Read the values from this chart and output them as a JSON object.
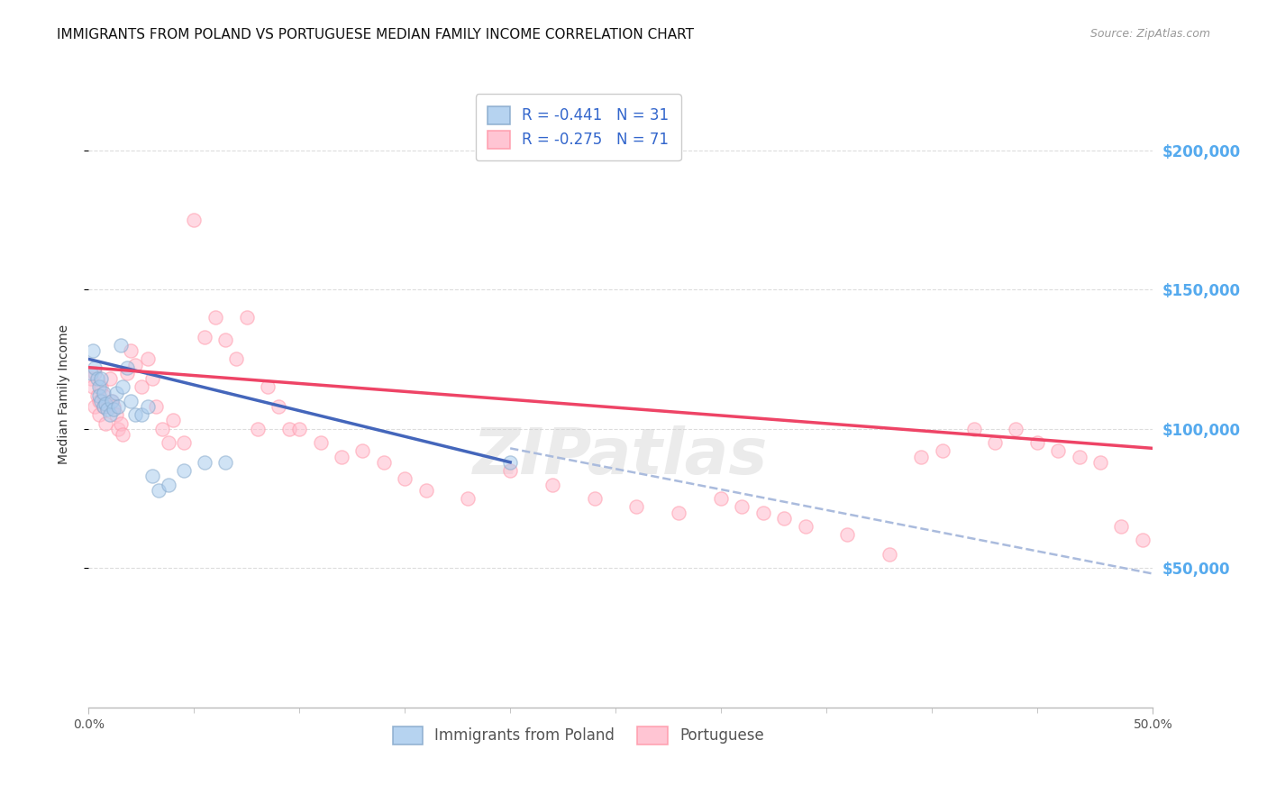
{
  "title": "IMMIGRANTS FROM POLAND VS PORTUGUESE MEDIAN FAMILY INCOME CORRELATION CHART",
  "source": "Source: ZipAtlas.com",
  "ylabel": "Median Family Income",
  "ytick_labels": [
    "$50,000",
    "$100,000",
    "$150,000",
    "$200,000"
  ],
  "ytick_values": [
    50000,
    100000,
    150000,
    200000
  ],
  "ylim": [
    0,
    225000
  ],
  "xlim": [
    0.0,
    0.505
  ],
  "xticks": [
    0.0,
    0.505
  ],
  "xtick_labels": [
    "0.0%",
    "50.0%"
  ],
  "legend_entry1": "R = -0.441   N = 31",
  "legend_entry2": "R = -0.275   N = 71",
  "color_blue_fill": "#AACCEE",
  "color_pink_fill": "#FFBBCC",
  "color_blue_edge": "#88AACC",
  "color_pink_edge": "#FF99AA",
  "color_blue_line": "#4466BB",
  "color_pink_line": "#EE4466",
  "color_dashed": "#AABBDD",
  "poland_x": [
    0.001,
    0.002,
    0.003,
    0.004,
    0.005,
    0.005,
    0.006,
    0.006,
    0.007,
    0.007,
    0.008,
    0.009,
    0.01,
    0.011,
    0.012,
    0.013,
    0.014,
    0.015,
    0.016,
    0.018,
    0.02,
    0.022,
    0.025,
    0.028,
    0.03,
    0.033,
    0.038,
    0.045,
    0.055,
    0.065,
    0.2
  ],
  "poland_y": [
    120000,
    128000,
    122000,
    118000,
    115000,
    112000,
    110000,
    118000,
    108000,
    113000,
    109000,
    107000,
    105000,
    110000,
    107000,
    113000,
    108000,
    130000,
    115000,
    122000,
    110000,
    105000,
    105000,
    108000,
    83000,
    78000,
    80000,
    85000,
    88000,
    88000,
    88000
  ],
  "portuguese_x": [
    0.001,
    0.002,
    0.003,
    0.003,
    0.004,
    0.005,
    0.005,
    0.006,
    0.007,
    0.007,
    0.008,
    0.009,
    0.01,
    0.011,
    0.012,
    0.013,
    0.014,
    0.015,
    0.016,
    0.018,
    0.02,
    0.022,
    0.025,
    0.028,
    0.03,
    0.032,
    0.035,
    0.038,
    0.04,
    0.045,
    0.05,
    0.055,
    0.06,
    0.065,
    0.07,
    0.075,
    0.08,
    0.085,
    0.09,
    0.095,
    0.1,
    0.11,
    0.12,
    0.13,
    0.14,
    0.15,
    0.16,
    0.18,
    0.2,
    0.22,
    0.24,
    0.26,
    0.28,
    0.3,
    0.31,
    0.32,
    0.33,
    0.34,
    0.36,
    0.38,
    0.395,
    0.405,
    0.42,
    0.43,
    0.44,
    0.45,
    0.46,
    0.47,
    0.48,
    0.49,
    0.5
  ],
  "portuguese_y": [
    118000,
    115000,
    120000,
    108000,
    112000,
    110000,
    105000,
    115000,
    108000,
    112000,
    102000,
    108000,
    118000,
    110000,
    108000,
    105000,
    100000,
    102000,
    98000,
    120000,
    128000,
    123000,
    115000,
    125000,
    118000,
    108000,
    100000,
    95000,
    103000,
    95000,
    175000,
    133000,
    140000,
    132000,
    125000,
    140000,
    100000,
    115000,
    108000,
    100000,
    100000,
    95000,
    90000,
    92000,
    88000,
    82000,
    78000,
    75000,
    85000,
    80000,
    75000,
    72000,
    70000,
    75000,
    72000,
    70000,
    68000,
    65000,
    62000,
    55000,
    90000,
    92000,
    100000,
    95000,
    100000,
    95000,
    92000,
    90000,
    88000,
    65000,
    60000
  ],
  "poland_trend_x": [
    0.0,
    0.2
  ],
  "poland_trend_y": [
    125000,
    88000
  ],
  "portuguese_trend_x": [
    0.0,
    0.505
  ],
  "portuguese_trend_y": [
    122000,
    93000
  ],
  "dashed_trend_x": [
    0.2,
    0.505
  ],
  "dashed_trend_y": [
    93000,
    48000
  ],
  "background_color": "#FFFFFF",
  "grid_color": "#DDDDDD",
  "title_fontsize": 11,
  "label_fontsize": 10,
  "tick_fontsize": 10,
  "source_fontsize": 9,
  "dot_size": 120,
  "dot_alpha": 0.55,
  "dot_linewidth": 1.0
}
